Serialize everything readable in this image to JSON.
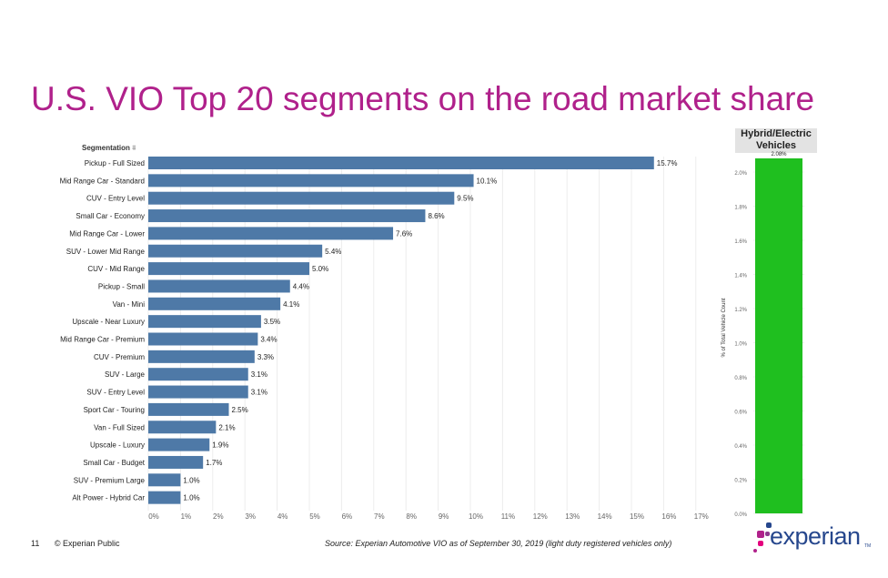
{
  "page": {
    "title": "U.S. VIO Top 20 segments on the road market share",
    "page_number": "11",
    "classification": "© Experian Public",
    "source": "Source: Experian Automotive VIO as of September 30, 2019  (light duty registered vehicles only)",
    "logo_text": "experian",
    "logo_tm": "TM"
  },
  "colors": {
    "title": "#b0218b",
    "bar": "#4e79a7",
    "hybrid_bar": "#1fbf1f",
    "logo_blue": "#26478d",
    "logo_dots": [
      "#26478d",
      "#b0218b",
      "#8e3a8e",
      "#e4007e"
    ]
  },
  "chart_data": [
    {
      "type": "bar",
      "orientation": "horizontal",
      "category_header": "Segmentation",
      "categories": [
        "Pickup - Full Sized",
        "Mid Range Car - Standard",
        "CUV - Entry Level",
        "Small Car - Economy",
        "Mid Range Car - Lower",
        "SUV - Lower Mid Range",
        "CUV - Mid Range",
        "Pickup - Small",
        "Van - Mini",
        "Upscale - Near Luxury",
        "Mid Range Car - Premium",
        "CUV - Premium",
        "SUV - Large",
        "SUV - Entry Level",
        "Sport Car - Touring",
        "Van - Full Sized",
        "Upscale - Luxury",
        "Small Car - Budget",
        "SUV - Premium Large",
        "Alt Power - Hybrid Car"
      ],
      "values": [
        15.7,
        10.1,
        9.5,
        8.6,
        7.6,
        5.4,
        5.0,
        4.4,
        4.1,
        3.5,
        3.4,
        3.3,
        3.1,
        3.1,
        2.5,
        2.1,
        1.9,
        1.7,
        1.0,
        1.0
      ],
      "data_labels": [
        "15.7%",
        "10.1%",
        "9.5%",
        "8.6%",
        "7.6%",
        "5.4%",
        "5.0%",
        "4.4%",
        "4.1%",
        "3.5%",
        "3.4%",
        "3.3%",
        "3.1%",
        "3.1%",
        "2.5%",
        "2.1%",
        "1.9%",
        "1.7%",
        "1.0%",
        "1.0%"
      ],
      "xlim": [
        0,
        17
      ],
      "x_ticks": [
        "0%",
        "1%",
        "2%",
        "3%",
        "4%",
        "5%",
        "6%",
        "7%",
        "8%",
        "9%",
        "10%",
        "11%",
        "12%",
        "13%",
        "14%",
        "15%",
        "16%",
        "17%"
      ],
      "grid": "vertical"
    },
    {
      "type": "bar",
      "title": "Hybrid/Electric Vehicles",
      "ylabel": "% of Total Vehicle Count",
      "values": [
        2.08
      ],
      "data_labels": [
        "2.08%"
      ],
      "ylim": [
        0,
        2.1
      ],
      "y_ticks": [
        "0.0%",
        "0.2%",
        "0.4%",
        "0.6%",
        "0.8%",
        "1.0%",
        "1.2%",
        "1.4%",
        "1.6%",
        "1.8%",
        "2.0%"
      ],
      "grid": "horizontal"
    }
  ]
}
